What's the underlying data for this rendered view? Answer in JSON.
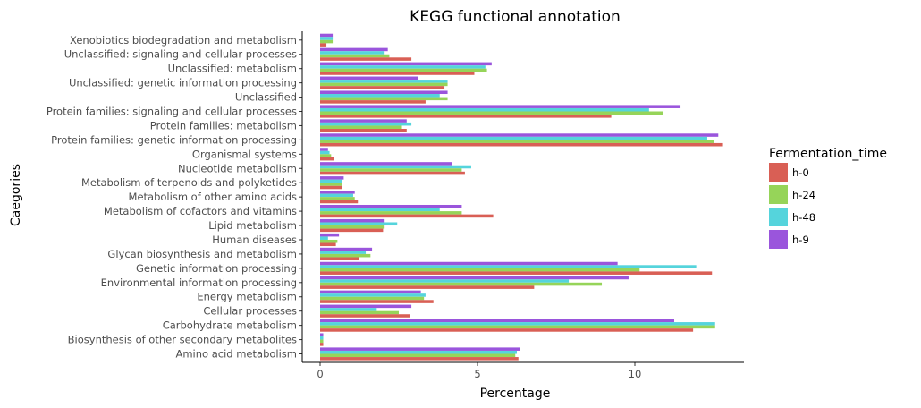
{
  "chart_data": {
    "type": "bar",
    "orientation": "horizontal",
    "title": "KEGG functional annotation",
    "xlabel": "Percentage",
    "ylabel": "Caegories",
    "xlim": [
      0,
      13.5
    ],
    "xticks": [
      0,
      5,
      10
    ],
    "grid": false,
    "legend_title": "Fermentation_time",
    "legend_position": "right",
    "categories": [
      "Xenobiotics biodegradation and metabolism",
      "Unclassified: signaling and cellular processes",
      "Unclassified: metabolism",
      "Unclassified: genetic information processing",
      "Unclassified",
      "Protein families: signaling and cellular processes",
      "Protein families: metabolism",
      "Protein families: genetic information processing",
      "Organismal systems",
      "Nucleotide metabolism",
      "Metabolism of terpenoids and polyketides",
      "Metabolism of other amino acids",
      "Metabolism of cofactors and vitamins",
      "Lipid metabolism",
      "Human diseases",
      "Glycan biosynthesis and metabolism",
      "Genetic information processing",
      "Environmental information processing",
      "Energy metabolism",
      "Cellular processes",
      "Carbohydrate metabolism",
      "Biosynthesis of other secondary metabolites",
      "Amino acid metabolism"
    ],
    "series": [
      {
        "name": "h-0",
        "color": "#d95f55",
        "values": [
          0.2,
          2.9,
          4.9,
          3.95,
          3.35,
          9.25,
          2.75,
          12.8,
          0.45,
          4.6,
          0.7,
          1.2,
          5.5,
          2.0,
          0.5,
          1.25,
          12.45,
          6.8,
          3.6,
          2.85,
          11.85,
          0.1,
          6.3
        ]
      },
      {
        "name": "h-24",
        "color": "#96d459",
        "values": [
          0.4,
          2.2,
          5.3,
          4.05,
          4.05,
          10.9,
          2.6,
          12.5,
          0.35,
          4.5,
          0.7,
          1.1,
          4.5,
          2.05,
          0.55,
          1.6,
          10.15,
          8.95,
          3.3,
          2.5,
          12.55,
          0.1,
          6.2
        ]
      },
      {
        "name": "h-48",
        "color": "#55d4dc",
        "values": [
          0.4,
          2.05,
          5.25,
          4.05,
          3.8,
          10.45,
          2.9,
          12.3,
          0.3,
          4.8,
          0.7,
          1.05,
          3.8,
          2.45,
          0.25,
          1.45,
          11.95,
          7.9,
          3.35,
          1.8,
          12.55,
          0.1,
          6.25
        ]
      },
      {
        "name": "h-9",
        "color": "#9a55dc",
        "values": [
          0.4,
          2.15,
          5.45,
          3.1,
          4.05,
          11.45,
          2.75,
          12.65,
          0.25,
          4.2,
          0.75,
          1.1,
          4.5,
          2.05,
          0.6,
          1.65,
          9.45,
          9.8,
          3.2,
          2.9,
          11.25,
          0.1,
          6.35
        ]
      }
    ]
  }
}
